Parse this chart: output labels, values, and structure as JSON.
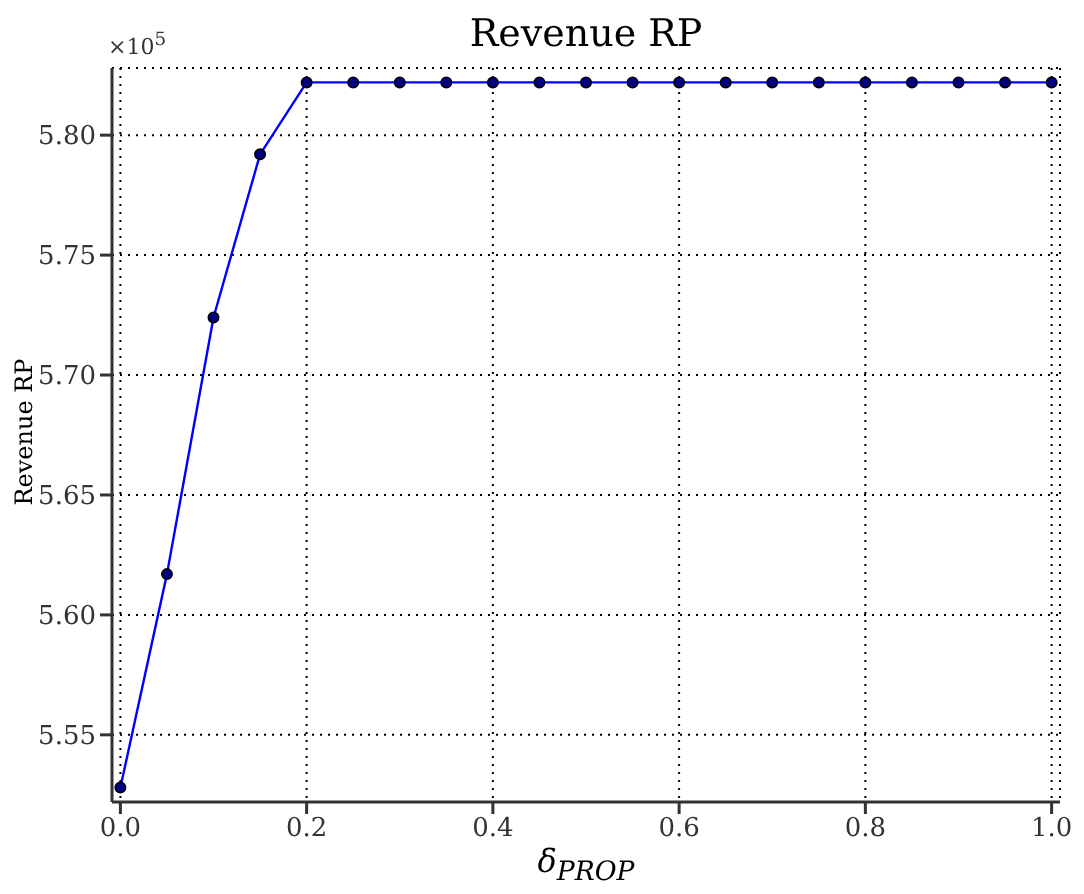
{
  "chart_data": {
    "type": "line",
    "title": "Revenue RP",
    "xlabel": "δ$_{PROP}$",
    "ylabel": "Revenue RP",
    "annotations": [
      "×10$^{5}$"
    ],
    "x": [
      0,
      0.05,
      0.1,
      0.15,
      0.2,
      0.25,
      0.3,
      0.35,
      0.4,
      0.45,
      0.5,
      0.55,
      0.6,
      0.65,
      0.7,
      0.75,
      0.8,
      0.85,
      0.9,
      0.95,
      1.0
    ],
    "series": [
      {
        "color": "#0000ff",
        "values": [
          5.528,
          5.617,
          5.724,
          5.792,
          5.822,
          5.822,
          5.822,
          5.822,
          5.822,
          5.822,
          5.822,
          5.822,
          5.822,
          5.822,
          5.822,
          5.822,
          5.822,
          5.822,
          5.822,
          5.822,
          5.822
        ]
      }
    ],
    "xlim": [
      -0.009,
      1.009
    ],
    "ylim": [
      5.522,
      5.828
    ],
    "xticks": [
      {
        "value": 0,
        "label": "0.0"
      },
      0.2,
      0.4,
      0.6,
      0.8,
      {
        "value": 1,
        "label": "1.0"
      }
    ],
    "yticks": [
      5.55,
      {
        "value": 5.6,
        "label": "5.60"
      },
      5.65,
      {
        "value": 5.7,
        "label": "5.70"
      },
      5.75,
      {
        "value": 5.8,
        "label": "5.80"
      }
    ],
    "grid": true,
    "marker": "circle",
    "line_style": "solid",
    "legend": false
  }
}
